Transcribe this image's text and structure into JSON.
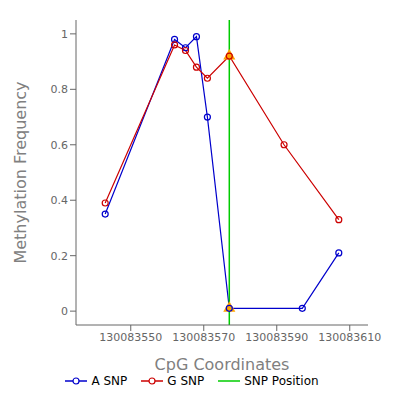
{
  "chart_data": {
    "type": "line",
    "xlabel": "CpG Coordinates",
    "ylabel": "Methylation Frequency",
    "xlim": [
      130083535,
      130083615
    ],
    "ylim": [
      -0.05,
      1.05
    ],
    "xticks": [
      130083550,
      130083570,
      130083590,
      130083610
    ],
    "yticks": [
      0.0,
      0.2,
      0.4,
      0.6,
      0.8,
      1.0
    ],
    "grid": false,
    "legend": "bottom",
    "series": [
      {
        "name": "A SNP",
        "type": "line",
        "color": "#0000CC",
        "marker": "circle",
        "x": [
          130083543,
          130083562,
          130083565,
          130083568,
          130083571,
          130083577,
          130083597,
          130083607
        ],
        "values": [
          0.35,
          0.98,
          0.95,
          0.99,
          0.7,
          0.01,
          0.01,
          0.21
        ]
      },
      {
        "name": "G SNP",
        "type": "line",
        "color": "#CC0000",
        "marker": "circle",
        "x": [
          130083543,
          130083562,
          130083565,
          130083568,
          130083571,
          130083577,
          130083592,
          130083607
        ],
        "values": [
          0.39,
          0.96,
          0.94,
          0.88,
          0.84,
          0.92,
          0.6,
          0.33
        ]
      },
      {
        "name": "SNP Position",
        "type": "vline",
        "color": "#00CC00",
        "x": [
          130083577
        ]
      },
      {
        "type": "scatter",
        "color": "#FFA500",
        "marker": "triangle",
        "x": [
          130083577,
          130083577
        ],
        "values": [
          0.01,
          0.92
        ]
      }
    ]
  }
}
